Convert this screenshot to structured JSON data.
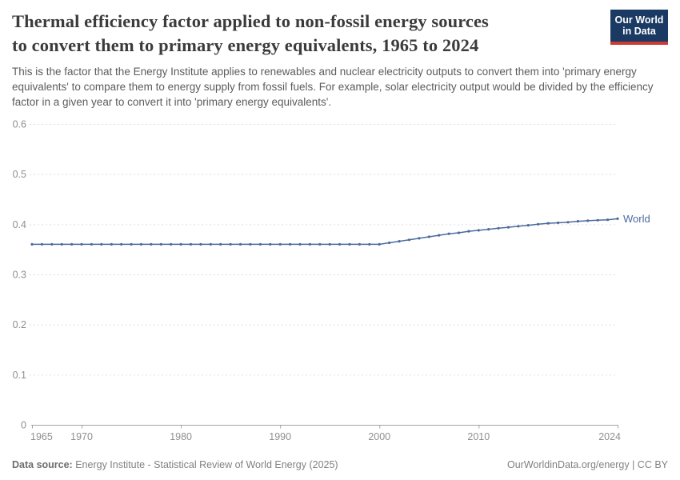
{
  "header": {
    "title_line1": "Thermal efficiency factor applied to non-fossil energy sources",
    "title_line2": "to convert them to primary energy equivalents, 1965 to 2024",
    "subtitle": "This is the factor that the Energy Institute applies to renewables and nuclear electricity outputs to convert them into 'primary energy equivalents' to compare them to energy supply from fossil fuels. For example, solar electricity output would be divided by the efficiency factor in a given year to convert it into 'primary energy equivalents'.",
    "logo": {
      "line1": "Our World",
      "line2": "in Data"
    }
  },
  "chart_data": {
    "type": "line",
    "title": "Thermal efficiency factor applied to non-fossil energy sources to convert them to primary energy equivalents, 1965 to 2024",
    "xlabel": "",
    "ylabel": "",
    "xlim": [
      1965,
      2024
    ],
    "ylim": [
      0,
      0.6
    ],
    "grid": "horizontal-dashed",
    "legend_position": "end-of-line-label",
    "yticks": {
      "values": [
        0,
        0.1,
        0.2,
        0.3,
        0.4,
        0.5,
        0.6
      ],
      "labels": [
        "0",
        "0.1",
        "0.2",
        "0.3",
        "0.4",
        "0.5",
        "0.6"
      ]
    },
    "xticks": {
      "values": [
        1965,
        1970,
        1980,
        1990,
        2000,
        2010,
        2024
      ],
      "labels": [
        "1965",
        "1970",
        "1980",
        "1990",
        "2000",
        "2010",
        "2024"
      ]
    },
    "series": [
      {
        "name": "World",
        "color": "#4c6a9e",
        "x": [
          1965,
          1966,
          1967,
          1968,
          1969,
          1970,
          1971,
          1972,
          1973,
          1974,
          1975,
          1976,
          1977,
          1978,
          1979,
          1980,
          1981,
          1982,
          1983,
          1984,
          1985,
          1986,
          1987,
          1988,
          1989,
          1990,
          1991,
          1992,
          1993,
          1994,
          1995,
          1996,
          1997,
          1998,
          1999,
          2000,
          2001,
          2002,
          2003,
          2004,
          2005,
          2006,
          2007,
          2008,
          2009,
          2010,
          2011,
          2012,
          2013,
          2014,
          2015,
          2016,
          2017,
          2018,
          2019,
          2020,
          2021,
          2022,
          2023,
          2024
        ],
        "y": [
          0.36,
          0.36,
          0.36,
          0.36,
          0.36,
          0.36,
          0.36,
          0.36,
          0.36,
          0.36,
          0.36,
          0.36,
          0.36,
          0.36,
          0.36,
          0.36,
          0.36,
          0.36,
          0.36,
          0.36,
          0.36,
          0.36,
          0.36,
          0.36,
          0.36,
          0.36,
          0.36,
          0.36,
          0.36,
          0.36,
          0.36,
          0.36,
          0.36,
          0.36,
          0.36,
          0.36,
          0.363,
          0.366,
          0.369,
          0.372,
          0.375,
          0.378,
          0.381,
          0.383,
          0.386,
          0.388,
          0.39,
          0.392,
          0.394,
          0.396,
          0.398,
          0.4,
          0.402,
          0.403,
          0.404,
          0.406,
          0.407,
          0.408,
          0.409,
          0.411
        ]
      }
    ],
    "colors": {
      "gridline": "#dedede",
      "axis_line": "#a3a3a3",
      "tick_label": "#8f8f8f",
      "series_label": "#4c6a9e"
    }
  },
  "footer": {
    "datasource_label": "Data source:",
    "datasource_text": " Energy Institute - Statistical Review of World Energy (2025)",
    "credit": "OurWorldinData.org/energy | CC BY"
  }
}
